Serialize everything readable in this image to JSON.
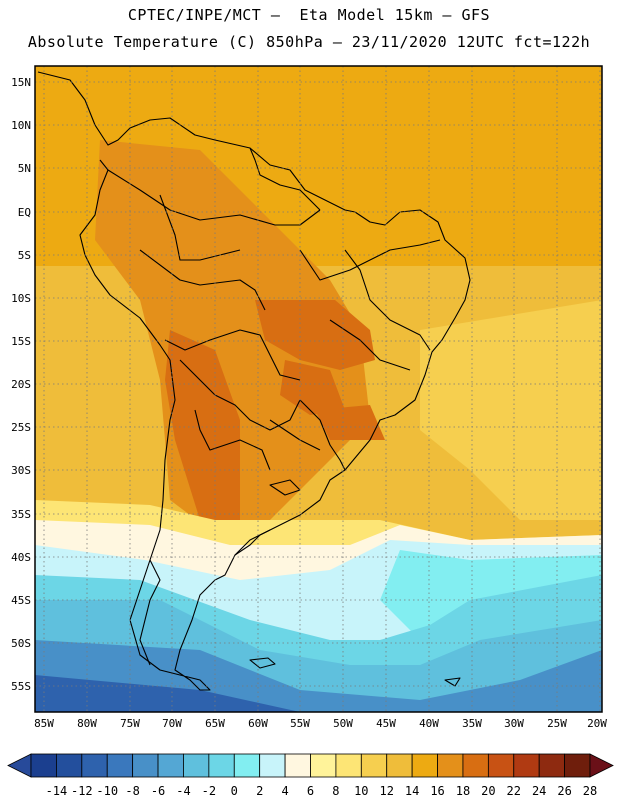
{
  "header": {
    "title_line1": "CPTEC/INPE/MCT –  Eta Model 15km – GFS",
    "title_line2": "Absolute Temperature (C) 850hPa – 23/11/2020 12UTC fct=122h"
  },
  "map": {
    "lat_labels": [
      "15N",
      "10N",
      "5N",
      "EQ",
      "5S",
      "10S",
      "15S",
      "20S",
      "25S",
      "30S",
      "35S",
      "40S",
      "45S",
      "50S",
      "55S"
    ],
    "lon_labels": [
      "85W",
      "80W",
      "75W",
      "70W",
      "65W",
      "60W",
      "55W",
      "50W",
      "45W",
      "40W",
      "35W",
      "30W",
      "25W",
      "20W"
    ],
    "lat_range": [
      15,
      -58
    ],
    "lon_range": [
      -86,
      -20
    ],
    "grid": "dotted"
  },
  "colorbar": {
    "tick_labels": [
      "-14",
      "-12",
      "-10",
      "-8",
      "-6",
      "-4",
      "-2",
      "0",
      "2",
      "4",
      "6",
      "8",
      "10",
      "12",
      "14",
      "16",
      "18",
      "20",
      "22",
      "24",
      "26",
      "28"
    ],
    "colors": [
      "#1b3f8f",
      "#234f9d",
      "#2e62ad",
      "#3a78bd",
      "#4890c8",
      "#54a7d4",
      "#5fc0dd",
      "#6cd6e6",
      "#82eef1",
      "#c8f4fa",
      "#fff7e0",
      "#fff39a",
      "#fde575",
      "#f6cf4f",
      "#efbd3a",
      "#edaa12",
      "#e4901a",
      "#d86e12",
      "#c85214",
      "#b03a12",
      "#8e2a10",
      "#6f1e0c"
    ],
    "under_color": "#274a9a",
    "over_color": "#6a1018"
  }
}
